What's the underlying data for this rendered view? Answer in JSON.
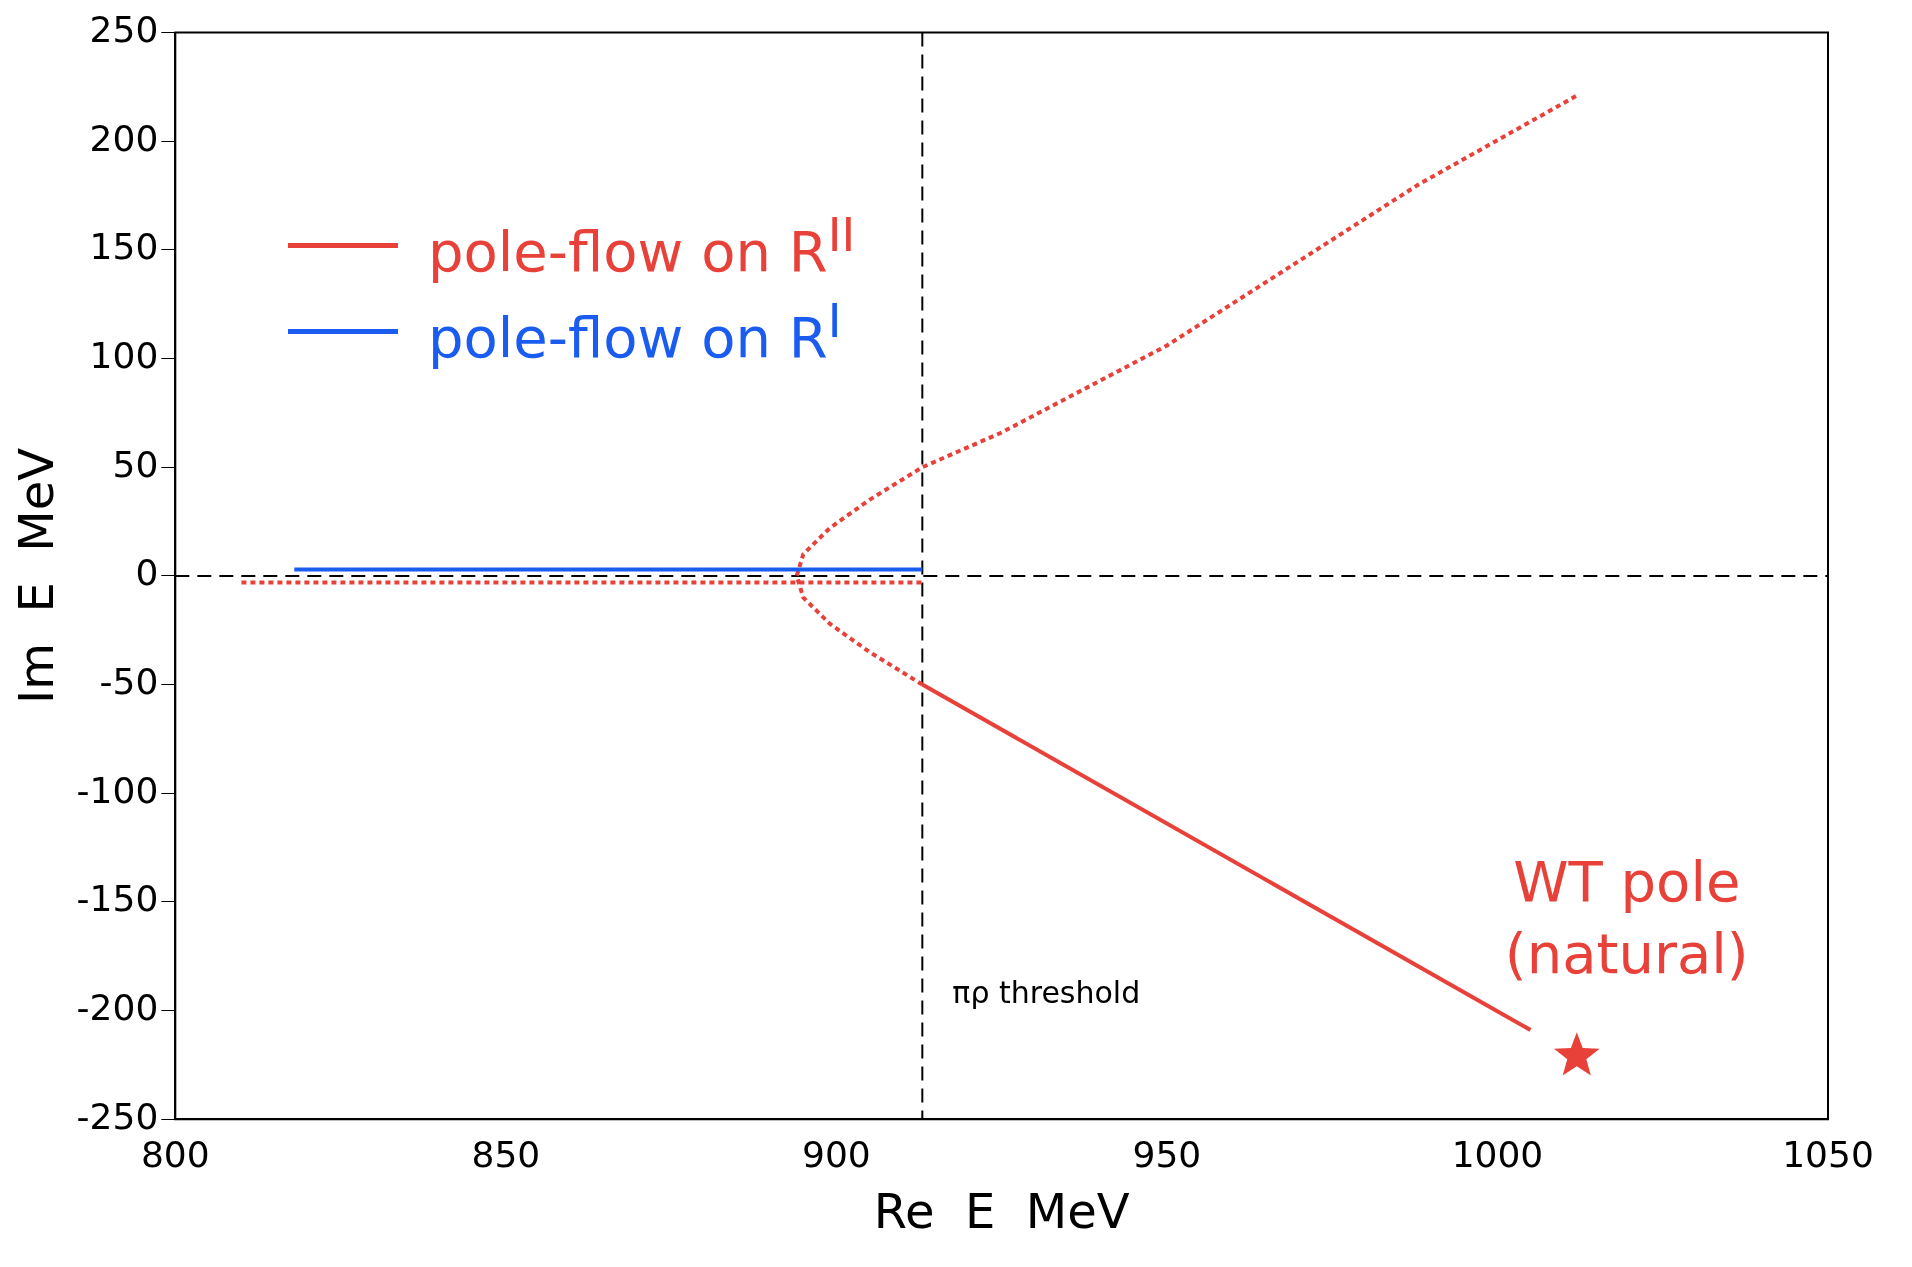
{
  "chart_data": {
    "type": "line",
    "xlabel": "Re  E  MeV",
    "ylabel": "Im  E  MeV",
    "xlim": [
      800,
      1050
    ],
    "xticks": [
      800,
      850,
      900,
      950,
      1000,
      1050
    ],
    "ylim": [
      -250,
      250
    ],
    "yticks": [
      -250,
      -200,
      -150,
      -100,
      -50,
      0,
      50,
      100,
      150,
      200,
      250
    ],
    "legend": "top left",
    "grid": false,
    "series": [
      {
        "name": "pole-flow on R$^{II}$",
        "color": "#e8413a",
        "x": [
          1005,
          913
        ],
        "values": [
          -209,
          -50
        ],
        "line_style": "solid"
      },
      {
        "name": "pole-flow on R$^{I}$",
        "color": "#1a5cf0",
        "x": [
          913,
          818
        ],
        "values": [
          3,
          3
        ],
        "line_style": "solid"
      },
      {
        "color": "#e8413a",
        "x": [
          913,
          905,
          899,
          895,
          894,
          895,
          899,
          905,
          913,
          925,
          950,
          988,
          1012
        ],
        "values": [
          -50,
          -35,
          -22,
          -10,
          0,
          10,
          22,
          35,
          50,
          66,
          106,
          180,
          221
        ],
        "line_style": "dotted"
      },
      {
        "color": "#e8413a",
        "x": [
          810,
          913
        ],
        "values": [
          -3,
          -3
        ],
        "line_style": "dotted"
      },
      {
        "type": "scatter",
        "color": "#e8413a",
        "x": [
          1012
        ],
        "values": [
          -221
        ],
        "marker": "star"
      }
    ],
    "ref_lines": [
      {
        "axis": "x",
        "value": 913,
        "label": "πρ threshold",
        "line_style": "dashed",
        "color": "#000000"
      },
      {
        "axis": "y",
        "value": 0,
        "label": null,
        "line_style": "dashed",
        "color": "#000000"
      }
    ],
    "annotations": [
      {
        "text": "WT pole\n(natural)",
        "x": 1012,
        "y": -221
      }
    ]
  }
}
